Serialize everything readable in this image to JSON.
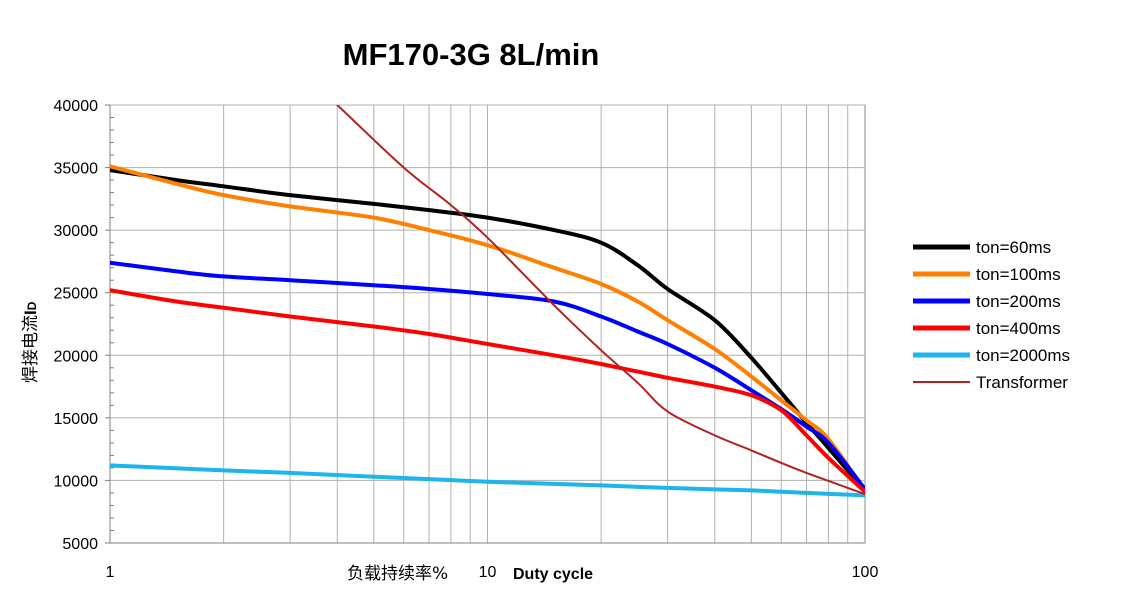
{
  "chart_data": {
    "type": "line",
    "title": "MF170-3G 8L/min",
    "xlabel_cn": "负载持续率%",
    "xlabel_en": "Duty cycle",
    "ylabel": "焊接电流",
    "ylabel_symbol": "I",
    "ylabel_subscript": "D",
    "x_scale": "log",
    "xlim": [
      1,
      100
    ],
    "ylim": [
      5000,
      40000
    ],
    "x_ticks": [
      "1",
      "10",
      "100"
    ],
    "y_ticks": [
      "5000",
      "10000",
      "15000",
      "20000",
      "25000",
      "30000",
      "35000",
      "40000"
    ],
    "grid": true,
    "legend_position": "right",
    "series": [
      {
        "name": "ton=60ms",
        "color": "#000000",
        "x": [
          1,
          1.5,
          2,
          3,
          5,
          7,
          10,
          15,
          20,
          25,
          30,
          40,
          50,
          60,
          70,
          80,
          100
        ],
        "y": [
          34800,
          34000,
          33500,
          32800,
          32100,
          31600,
          31000,
          30000,
          29000,
          27200,
          25300,
          22800,
          19800,
          17000,
          14600,
          12600,
          9200
        ]
      },
      {
        "name": "ton=100ms",
        "color": "#FF7F00",
        "x": [
          1,
          1.5,
          2,
          3,
          5,
          7,
          10,
          15,
          20,
          25,
          30,
          40,
          50,
          60,
          70,
          80,
          100
        ],
        "y": [
          35100,
          33700,
          32800,
          31900,
          31000,
          30000,
          28800,
          27000,
          25700,
          24300,
          22800,
          20500,
          18300,
          16400,
          14800,
          13300,
          9200
        ]
      },
      {
        "name": "ton=200ms",
        "color": "#0000FF",
        "x": [
          1,
          1.5,
          2,
          3,
          5,
          7,
          10,
          15,
          20,
          25,
          30,
          40,
          50,
          60,
          70,
          80,
          100
        ],
        "y": [
          27400,
          26700,
          26300,
          26000,
          25600,
          25300,
          24900,
          24300,
          23100,
          21900,
          20900,
          19000,
          17200,
          15700,
          14300,
          13000,
          9300
        ]
      },
      {
        "name": "ton=400ms",
        "color": "#FF0000",
        "x": [
          1,
          1.5,
          2,
          3,
          5,
          7,
          10,
          15,
          20,
          25,
          30,
          40,
          50,
          60,
          70,
          80,
          100
        ],
        "y": [
          25200,
          24300,
          23800,
          23100,
          22300,
          21700,
          20900,
          20000,
          19300,
          18700,
          18200,
          17500,
          16800,
          15600,
          13600,
          11800,
          9100
        ]
      },
      {
        "name": "ton=2000ms",
        "color": "#1EB4EE",
        "x": [
          1,
          2,
          3,
          5,
          10,
          20,
          30,
          50,
          70,
          100
        ],
        "y": [
          11200,
          10800,
          10600,
          10300,
          9900,
          9600,
          9400,
          9200,
          9000,
          8800
        ]
      },
      {
        "name": "Transformer",
        "color": "#B22222",
        "x": [
          4,
          6,
          8,
          10,
          15,
          20,
          25,
          30,
          40,
          50,
          60,
          70,
          100
        ],
        "y": [
          40000,
          35000,
          32000,
          29400,
          24000,
          20400,
          17800,
          15500,
          13600,
          12400,
          11400,
          10600,
          8900
        ]
      }
    ]
  }
}
